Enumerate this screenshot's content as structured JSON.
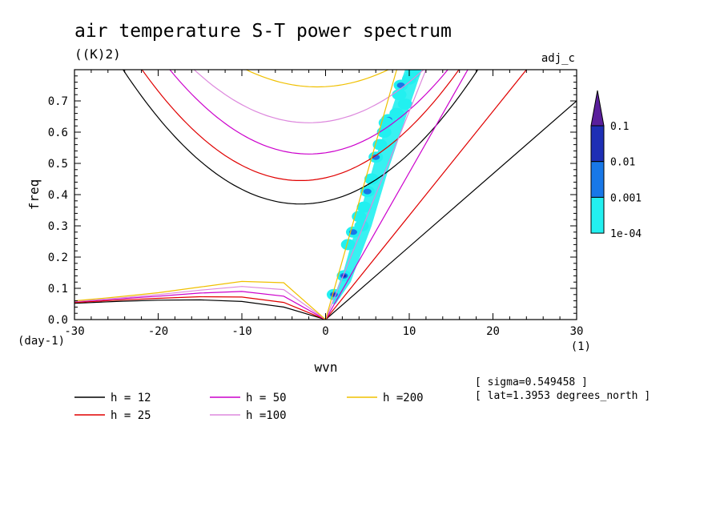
{
  "chart_data": {
    "type": "line",
    "title": "air temperature S-T power spectrum",
    "units_label": "((K)2)",
    "run_label": "adj_c",
    "xlabel": "wvn",
    "ylabel": "freq",
    "x_unit": "(1)",
    "y_unit": "(day-1)",
    "xlim": [
      -30,
      30
    ],
    "ylim": [
      0,
      0.8
    ],
    "x_ticks": [
      -30,
      -20,
      -10,
      0,
      10,
      20,
      30
    ],
    "y_ticks": [
      0.0,
      0.1,
      0.2,
      0.3,
      0.4,
      0.5,
      0.6,
      0.7
    ],
    "x_tick_labels": [
      "-30",
      "-20",
      "-10",
      "0",
      "10",
      "20",
      "30"
    ],
    "y_tick_labels": [
      "0.0",
      "0.1",
      "0.2",
      "0.3",
      "0.4",
      "0.5",
      "0.6",
      "0.7"
    ],
    "annotations": [
      "[ sigma=0.549458 ]",
      "[ lat=1.3953 degrees_north ]"
    ],
    "colorbar": {
      "labels": [
        "0.1",
        "0.01",
        "0.001",
        "1e-04"
      ],
      "colors": [
        "#5a1f9c",
        "#1e2fb5",
        "#1878e8",
        "#22f0f0"
      ]
    },
    "series": [
      {
        "name": "h = 12",
        "color": "#000000",
        "vertex_freq": 0.37,
        "vertex_wvn": -3,
        "mrg_x": [
          -30,
          -25,
          -20,
          -15,
          -10,
          -5,
          0
        ],
        "mrg_y": [
          0.052,
          0.058,
          0.062,
          0.063,
          0.058,
          0.04,
          0
        ],
        "kelvin_x": [
          0,
          30
        ],
        "kelvin_y": [
          0,
          0.7
        ]
      },
      {
        "name": "h = 25",
        "color": "#e00000",
        "vertex_freq": 0.445,
        "vertex_wvn": -3,
        "mrg_x": [
          -30,
          -25,
          -20,
          -15,
          -10,
          -5,
          0
        ],
        "mrg_y": [
          0.055,
          0.062,
          0.068,
          0.073,
          0.072,
          0.055,
          0
        ],
        "kelvin_x": [
          0,
          24
        ],
        "kelvin_y": [
          0,
          0.8
        ]
      },
      {
        "name": "h = 50",
        "color": "#cc00cc",
        "vertex_freq": 0.53,
        "vertex_wvn": -2,
        "mrg_x": [
          -30,
          -25,
          -20,
          -15,
          -10,
          -5,
          0
        ],
        "mrg_y": [
          0.057,
          0.066,
          0.075,
          0.085,
          0.09,
          0.075,
          0
        ],
        "kelvin_x": [
          0,
          17
        ],
        "kelvin_y": [
          0,
          0.8
        ]
      },
      {
        "name": "h =100",
        "color": "#dd88dd",
        "vertex_freq": 0.63,
        "vertex_wvn": -2,
        "mrg_x": [
          -30,
          -25,
          -20,
          -15,
          -10,
          -5,
          0
        ],
        "mrg_y": [
          0.058,
          0.068,
          0.08,
          0.094,
          0.106,
          0.096,
          0
        ],
        "kelvin_x": [
          0,
          12
        ],
        "kelvin_y": [
          0,
          0.8
        ]
      },
      {
        "name": "h =200",
        "color": "#f0c000",
        "vertex_freq": 0.745,
        "vertex_wvn": -1,
        "mrg_x": [
          -30,
          -25,
          -20,
          -15,
          -10,
          -5,
          0
        ],
        "mrg_y": [
          0.06,
          0.072,
          0.086,
          0.104,
          0.122,
          0.118,
          0
        ],
        "kelvin_x": [
          0,
          8.5
        ],
        "kelvin_y": [
          0,
          0.8
        ]
      }
    ],
    "contour_points": [
      {
        "x": 1.0,
        "y": 0.08,
        "level": 2
      },
      {
        "x": 2.2,
        "y": 0.14,
        "level": 2
      },
      {
        "x": 3.3,
        "y": 0.28,
        "level": 1
      },
      {
        "x": 4.3,
        "y": 0.3,
        "level": 0
      },
      {
        "x": 4.6,
        "y": 0.36,
        "level": 0
      },
      {
        "x": 5.0,
        "y": 0.41,
        "level": 1
      },
      {
        "x": 5.5,
        "y": 0.45,
        "level": 0
      },
      {
        "x": 6.0,
        "y": 0.52,
        "level": 1
      },
      {
        "x": 6.5,
        "y": 0.56,
        "level": 0
      },
      {
        "x": 7.0,
        "y": 0.6,
        "level": 0
      },
      {
        "x": 7.5,
        "y": 0.64,
        "level": 1
      },
      {
        "x": 8.5,
        "y": 0.66,
        "level": 0
      },
      {
        "x": 8.8,
        "y": 0.72,
        "level": 0
      },
      {
        "x": 9.5,
        "y": 0.69,
        "level": 0
      },
      {
        "x": 10.0,
        "y": 0.77,
        "level": 0
      },
      {
        "x": 10.5,
        "y": 0.79,
        "level": 0
      },
      {
        "x": 9.0,
        "y": 0.75,
        "level": 1
      },
      {
        "x": 7.2,
        "y": 0.63,
        "level": 0
      },
      {
        "x": 4.0,
        "y": 0.33,
        "level": 0
      },
      {
        "x": 2.7,
        "y": 0.24,
        "level": 0
      }
    ]
  }
}
